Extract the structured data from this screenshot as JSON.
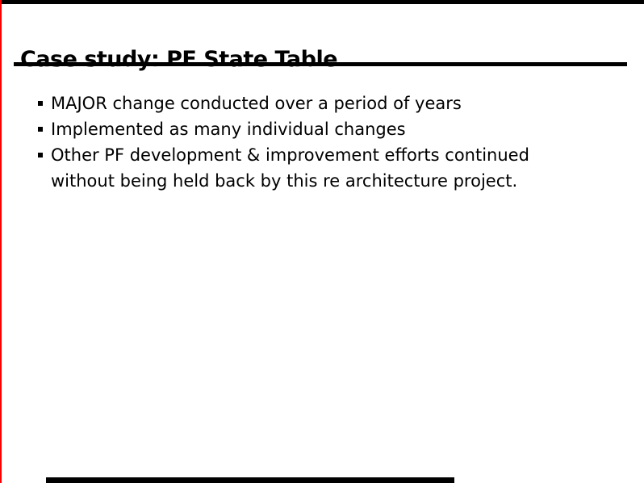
{
  "slide": {
    "title": "Case study: PF State Table",
    "bullets": [
      "MAJOR change conducted over a period of years",
      "Implemented as many individual changes",
      "Other PF development & improvement efforts continued without being held back by this re architecture project."
    ]
  },
  "colors": {
    "background": "#ffffff",
    "text": "#000000",
    "rule_black": "#000000",
    "left_border_red": "#ff0000"
  }
}
